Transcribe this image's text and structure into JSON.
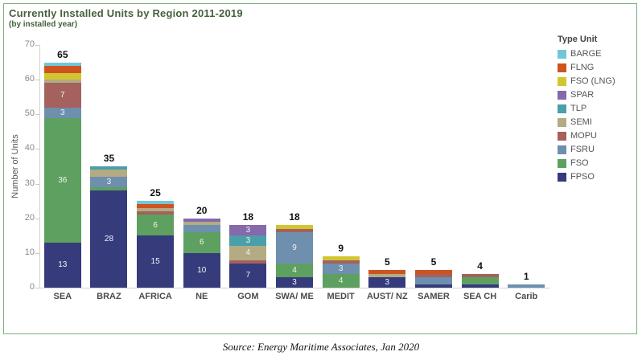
{
  "caption": {
    "text": "Source: Energy Maritime Associates, Jan 2020"
  },
  "chart_data": {
    "type": "bar",
    "stacked": true,
    "title": "Currently Installed Units by Region 2011-2019",
    "subtitle": "(by installed year)",
    "ylabel": "Number of Units",
    "ylim": [
      0,
      70
    ],
    "yticks": [
      0,
      10,
      20,
      30,
      40,
      50,
      60,
      70
    ],
    "grid": false,
    "legend_title": "Type Unit",
    "legend_position": "right",
    "legend_order": [
      "BARGE",
      "FLNG",
      "FSO (LNG)",
      "SPAR",
      "TLP",
      "SEMI",
      "MOPU",
      "FSRU",
      "FSO",
      "FPSO"
    ],
    "colors": {
      "BARGE": "#72c7d7",
      "FLNG": "#cc5420",
      "FSO (LNG)": "#d1c62f",
      "SPAR": "#8569ab",
      "TLP": "#4a9fa9",
      "SEMI": "#b3ab84",
      "MOPU": "#a4615d",
      "FSRU": "#6e8fae",
      "FSO": "#5da05f",
      "FPSO": "#363b7c"
    },
    "categories": [
      "SEA",
      "BRAZ",
      "AFRICA",
      "NE",
      "GOM",
      "SWA/ ME",
      "MEDIT",
      "AUST/ NZ",
      "SAMER",
      "SEA CH",
      "Carib"
    ],
    "totals": [
      65,
      35,
      25,
      20,
      18,
      18,
      9,
      5,
      5,
      4,
      1
    ],
    "series": [
      {
        "name": "FPSO",
        "values": [
          13,
          28,
          15,
          10,
          7,
          3,
          0,
          3,
          1,
          1,
          0
        ]
      },
      {
        "name": "FSO",
        "values": [
          36,
          1,
          6,
          6,
          0,
          4,
          4,
          0,
          0,
          2,
          0
        ]
      },
      {
        "name": "FSRU",
        "values": [
          3,
          3,
          0,
          2,
          0,
          9,
          3,
          0,
          2,
          0,
          1
        ]
      },
      {
        "name": "MOPU",
        "values": [
          7,
          0,
          1,
          0,
          1,
          1,
          1,
          0,
          1,
          1,
          0
        ]
      },
      {
        "name": "SEMI",
        "values": [
          1,
          2,
          1,
          1,
          4,
          0,
          0,
          1,
          0,
          0,
          0
        ]
      },
      {
        "name": "TLP",
        "values": [
          0,
          1,
          0,
          0,
          3,
          0,
          0,
          0,
          0,
          0,
          0
        ]
      },
      {
        "name": "SPAR",
        "values": [
          0,
          0,
          0,
          1,
          3,
          0,
          0,
          0,
          0,
          0,
          0
        ]
      },
      {
        "name": "FSO (LNG)",
        "values": [
          2,
          0,
          0,
          0,
          0,
          1,
          1,
          0,
          0,
          0,
          0
        ]
      },
      {
        "name": "FLNG",
        "values": [
          2,
          0,
          1,
          0,
          0,
          0,
          0,
          1,
          1,
          0,
          0
        ]
      },
      {
        "name": "BARGE",
        "values": [
          1,
          0,
          1,
          0,
          0,
          0,
          0,
          0,
          0,
          0,
          0
        ]
      }
    ],
    "bars": [
      {
        "region": "SEA",
        "total": 65,
        "segments": [
          {
            "type": "FPSO",
            "value": 13,
            "label": "13"
          },
          {
            "type": "FSO",
            "value": 36,
            "label": "36"
          },
          {
            "type": "FSRU",
            "value": 3,
            "label": "3"
          },
          {
            "type": "MOPU",
            "value": 7,
            "label": "7"
          },
          {
            "type": "SEMI",
            "value": 1
          },
          {
            "type": "FSO (LNG)",
            "value": 2,
            "label": "2"
          },
          {
            "type": "FLNG",
            "value": 2
          },
          {
            "type": "BARGE",
            "value": 1
          }
        ]
      },
      {
        "region": "BRAZ",
        "total": 35,
        "segments": [
          {
            "type": "FPSO",
            "value": 28,
            "label": "28"
          },
          {
            "type": "FSO",
            "value": 1
          },
          {
            "type": "FSRU",
            "value": 3,
            "label": "3"
          },
          {
            "type": "SEMI",
            "value": 2,
            "label": "2"
          },
          {
            "type": "TLP",
            "value": 1
          }
        ]
      },
      {
        "region": "AFRICA",
        "total": 25,
        "segments": [
          {
            "type": "FPSO",
            "value": 15,
            "label": "15"
          },
          {
            "type": "FSO",
            "value": 6,
            "label": "6"
          },
          {
            "type": "MOPU",
            "value": 1
          },
          {
            "type": "SEMI",
            "value": 1
          },
          {
            "type": "FLNG",
            "value": 1
          },
          {
            "type": "BARGE",
            "value": 1
          }
        ]
      },
      {
        "region": "NE",
        "total": 20,
        "segments": [
          {
            "type": "FPSO",
            "value": 10,
            "label": "10"
          },
          {
            "type": "FSO",
            "value": 6,
            "label": "6"
          },
          {
            "type": "FSRU",
            "value": 2
          },
          {
            "type": "SEMI",
            "value": 1
          },
          {
            "type": "SPAR",
            "value": 1
          }
        ]
      },
      {
        "region": "GOM",
        "total": 18,
        "segments": [
          {
            "type": "FPSO",
            "value": 7,
            "label": "7"
          },
          {
            "type": "MOPU",
            "value": 1
          },
          {
            "type": "SEMI",
            "value": 4,
            "label": "4"
          },
          {
            "type": "TLP",
            "value": 3,
            "label": "3"
          },
          {
            "type": "SPAR",
            "value": 3,
            "label": "3"
          }
        ]
      },
      {
        "region": "SWA/ ME",
        "total": 18,
        "segments": [
          {
            "type": "FPSO",
            "value": 3,
            "label": "3"
          },
          {
            "type": "FSO",
            "value": 4,
            "label": "4"
          },
          {
            "type": "FSRU",
            "value": 9,
            "label": "9"
          },
          {
            "type": "MOPU",
            "value": 1
          },
          {
            "type": "FSO (LNG)",
            "value": 1
          }
        ]
      },
      {
        "region": "MEDIT",
        "total": 9,
        "segments": [
          {
            "type": "FSO",
            "value": 4,
            "label": "4"
          },
          {
            "type": "FSRU",
            "value": 3,
            "label": "3"
          },
          {
            "type": "MOPU",
            "value": 1
          },
          {
            "type": "FSO (LNG)",
            "value": 1
          }
        ]
      },
      {
        "region": "AUST/ NZ",
        "total": 5,
        "segments": [
          {
            "type": "FPSO",
            "value": 3,
            "label": "3"
          },
          {
            "type": "SEMI",
            "value": 1
          },
          {
            "type": "FLNG",
            "value": 1
          }
        ]
      },
      {
        "region": "SAMER",
        "total": 5,
        "segments": [
          {
            "type": "FPSO",
            "value": 1
          },
          {
            "type": "FSRU",
            "value": 2,
            "label": "2"
          },
          {
            "type": "MOPU",
            "value": 1
          },
          {
            "type": "FLNG",
            "value": 1
          }
        ]
      },
      {
        "region": "SEA CH",
        "total": 4,
        "segments": [
          {
            "type": "FPSO",
            "value": 1
          },
          {
            "type": "FSO",
            "value": 2
          },
          {
            "type": "MOPU",
            "value": 1
          }
        ]
      },
      {
        "region": "Carib",
        "total": 1,
        "segments": [
          {
            "type": "FSRU",
            "value": 1
          }
        ]
      }
    ]
  }
}
